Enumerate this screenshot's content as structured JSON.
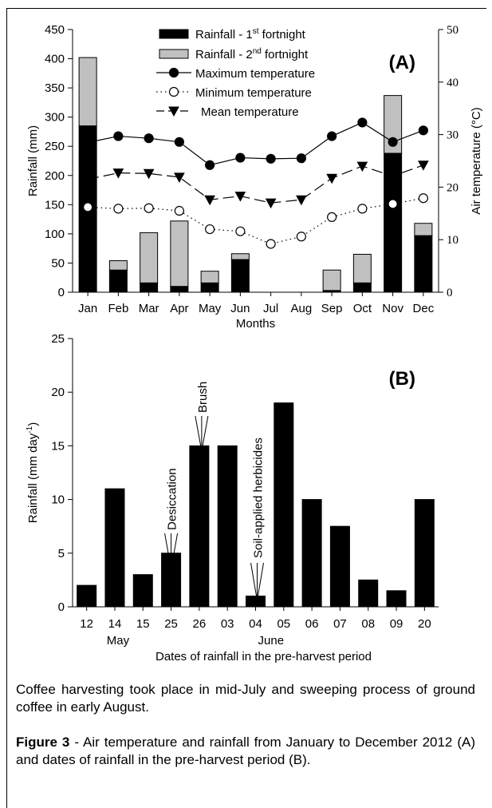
{
  "chart_data": [
    {
      "type": "bar",
      "panel_label": "(A)",
      "categories": [
        "Jan",
        "Feb",
        "Mar",
        "Apr",
        "May",
        "Jun",
        "Jul",
        "Aug",
        "Sep",
        "Oct",
        "Nov",
        "Dec"
      ],
      "xlabel": "Months",
      "ylabel": "Rainfall (mm)",
      "ylim": [
        0,
        450
      ],
      "yticks": [
        0,
        50,
        100,
        150,
        200,
        250,
        300,
        350,
        400,
        450
      ],
      "y2label": "Air temperature (°C)",
      "y2lim": [
        0,
        50
      ],
      "y2ticks": [
        0,
        10,
        20,
        30,
        40,
        50
      ],
      "legend_position": "top",
      "series": [
        {
          "name": "Rainfall - 1st fortnight",
          "kind": "bar",
          "color": "#000000",
          "values": [
            285,
            38,
            16,
            10,
            16,
            56,
            0,
            0,
            3,
            16,
            238,
            97
          ]
        },
        {
          "name": "Rainfall - 2nd fortnight",
          "kind": "bar-stacked",
          "color": "#c0c0c0",
          "values": [
            117,
            16,
            86,
            112,
            20,
            10,
            0,
            0,
            35,
            49,
            99,
            21
          ]
        },
        {
          "name": "Maximum temperature",
          "kind": "line",
          "axis": "right",
          "marker": "filled-circle",
          "line": "solid",
          "values": [
            28.5,
            29.7,
            29.3,
            28.6,
            24.2,
            25.6,
            25.4,
            25.5,
            29.7,
            32.3,
            28.6,
            30.8
          ]
        },
        {
          "name": "Minimum temperature",
          "kind": "line",
          "axis": "right",
          "marker": "open-circle",
          "line": "dotted",
          "values": [
            16.2,
            15.9,
            16.0,
            15.5,
            12.0,
            11.6,
            9.2,
            10.6,
            14.3,
            15.9,
            16.8,
            17.9
          ]
        },
        {
          "name": "Mean temperature",
          "kind": "line",
          "axis": "right",
          "marker": "filled-down-triangle",
          "line": "dashed",
          "values": [
            21.5,
            22.7,
            22.6,
            21.9,
            17.6,
            18.3,
            17.0,
            17.6,
            21.7,
            24.0,
            22.1,
            24.2
          ]
        }
      ]
    },
    {
      "type": "bar",
      "panel_label": "(B)",
      "categories": [
        "12",
        "14",
        "15",
        "25",
        "26",
        "03",
        "04",
        "05",
        "06",
        "07",
        "08",
        "09",
        "20"
      ],
      "group_labels": [
        "May",
        "June"
      ],
      "xlabel": "Dates of rainfall in the pre-harvest period",
      "ylabel_main": "Rainfall (mm day",
      "ylabel_sup": "-1",
      "ylabel_close": ")",
      "ylim": [
        0,
        25
      ],
      "yticks": [
        0,
        5,
        10,
        15,
        20,
        25
      ],
      "values": [
        2,
        11,
        3,
        5,
        15,
        15,
        1,
        19,
        10,
        7.5,
        2.5,
        1.5,
        10
      ],
      "annotations": [
        {
          "text": "Desiccation",
          "at_category": "25"
        },
        {
          "text": "Brush",
          "at_category": "26"
        },
        {
          "text": "Soil-applied herbicides",
          "at_category": "04"
        }
      ]
    }
  ],
  "legend": {
    "rain1_a": "Rainfall - 1",
    "rain1_sup": "st",
    "rain1_b": " fortnight",
    "rain2_a": "Rainfall - 2",
    "rain2_sup": "nd",
    "rain2_b": " fortnight",
    "tmax": "Maximum temperature",
    "tmin": "Minimum temperature",
    "tmean": "Mean temperature"
  },
  "note": "Coffee harvesting took place in mid-July and sweeping process of ground coffee in early August.",
  "caption": {
    "label": "Figure 3",
    "text": " - Air temperature and rainfall from January to December 2012 (A) and dates of rainfall in the pre-harvest period (B)."
  }
}
